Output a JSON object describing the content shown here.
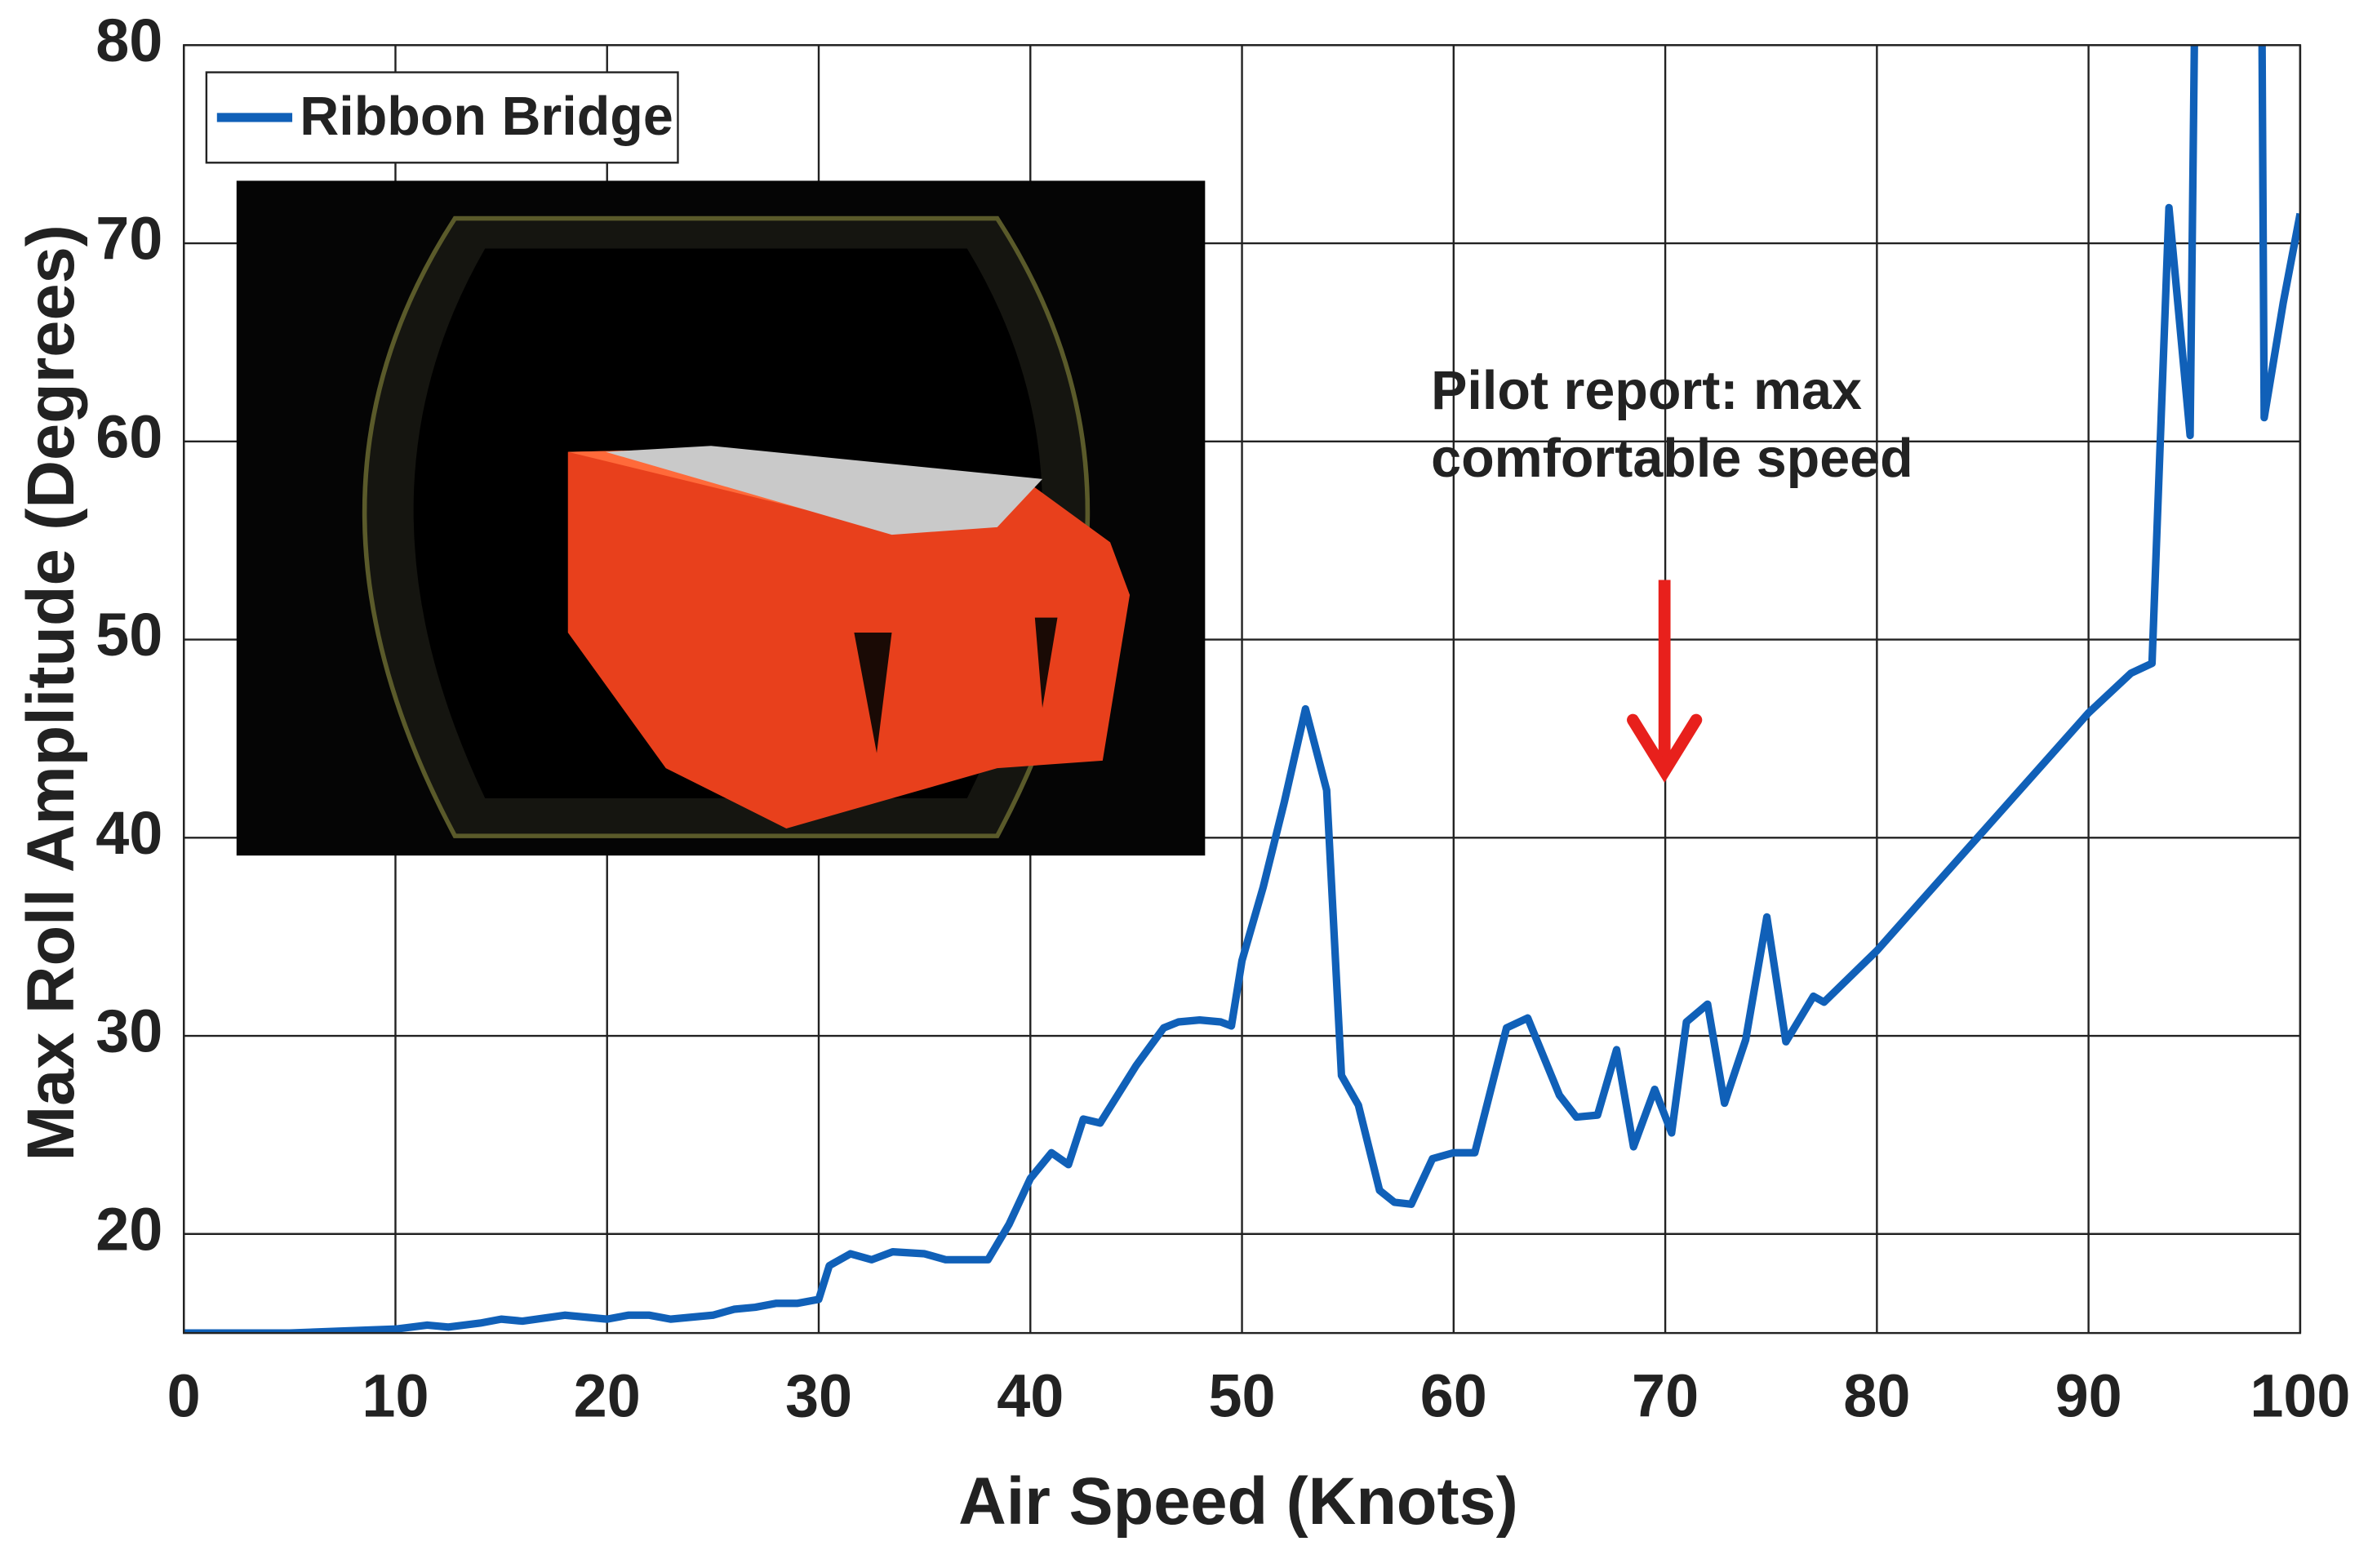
{
  "chart_data": {
    "type": "line",
    "xlabel": "Air Speed (Knots)",
    "ylabel": "Max Roll Amplitude (Degrees)",
    "annotation": [
      "Pilot report: max",
      "comfortable speed"
    ],
    "xlim": [
      0,
      100
    ],
    "xticks": [
      0,
      10,
      20,
      30,
      40,
      50,
      60,
      70,
      80,
      90,
      100
    ],
    "ylim": [
      15,
      80
    ],
    "yticks": [
      20,
      30,
      40,
      50,
      60,
      70,
      80
    ],
    "grid": true,
    "legend": "upper left",
    "series": [
      {
        "name": "Ribbon Bridge",
        "color": "#1060b8",
        "x": [
          0,
          5,
          10,
          11.5,
          12.5,
          14,
          15,
          16,
          18,
          20,
          21,
          22,
          23,
          25,
          26,
          27,
          28,
          29,
          30,
          30.5,
          31.5,
          32.5,
          33.5,
          35,
          36,
          38,
          39,
          40,
          41,
          41.8,
          42.5,
          43.3,
          45,
          46.3,
          47,
          48,
          49,
          49.5,
          50,
          51,
          52,
          53,
          54,
          54.7,
          55.5,
          56.5,
          57.2,
          58,
          59,
          60,
          61,
          62.5,
          63.5,
          65,
          65.8,
          66.8,
          67.7,
          68.5,
          69.5,
          70.3,
          71,
          72,
          72.8,
          73.8,
          74.8,
          75.7,
          77,
          77.5,
          80,
          85,
          90,
          92,
          93,
          93.8,
          94.8,
          95,
          null,
          98.2,
          98.3,
          99.2,
          100
        ],
        "values": [
          15,
          15,
          15.2,
          15.4,
          15.3,
          15.5,
          15.7,
          15.6,
          15.9,
          15.7,
          15.9,
          15.9,
          15.7,
          15.9,
          16.2,
          16.3,
          16.5,
          16.5,
          16.7,
          18.4,
          19,
          18.7,
          19.1,
          19,
          18.7,
          18.7,
          20.5,
          22.8,
          24.1,
          23.5,
          25.8,
          25.6,
          28.5,
          30.4,
          30.7,
          30.8,
          30.7,
          30.5,
          33.8,
          37.5,
          41.8,
          46.5,
          42.4,
          28,
          26.5,
          22.2,
          21.6,
          21.5,
          23.8,
          24.1,
          24.1,
          30.4,
          30.9,
          27,
          25.9,
          26,
          29.3,
          24.4,
          27.3,
          25.1,
          30.7,
          31.6,
          26.6,
          29.8,
          36,
          29.7,
          32,
          31.7,
          34.3,
          40.3,
          46.3,
          48.3,
          48.8,
          71.8,
          60.3,
          80,
          null,
          80,
          61.2,
          67,
          71.5
        ]
      }
    ]
  }
}
